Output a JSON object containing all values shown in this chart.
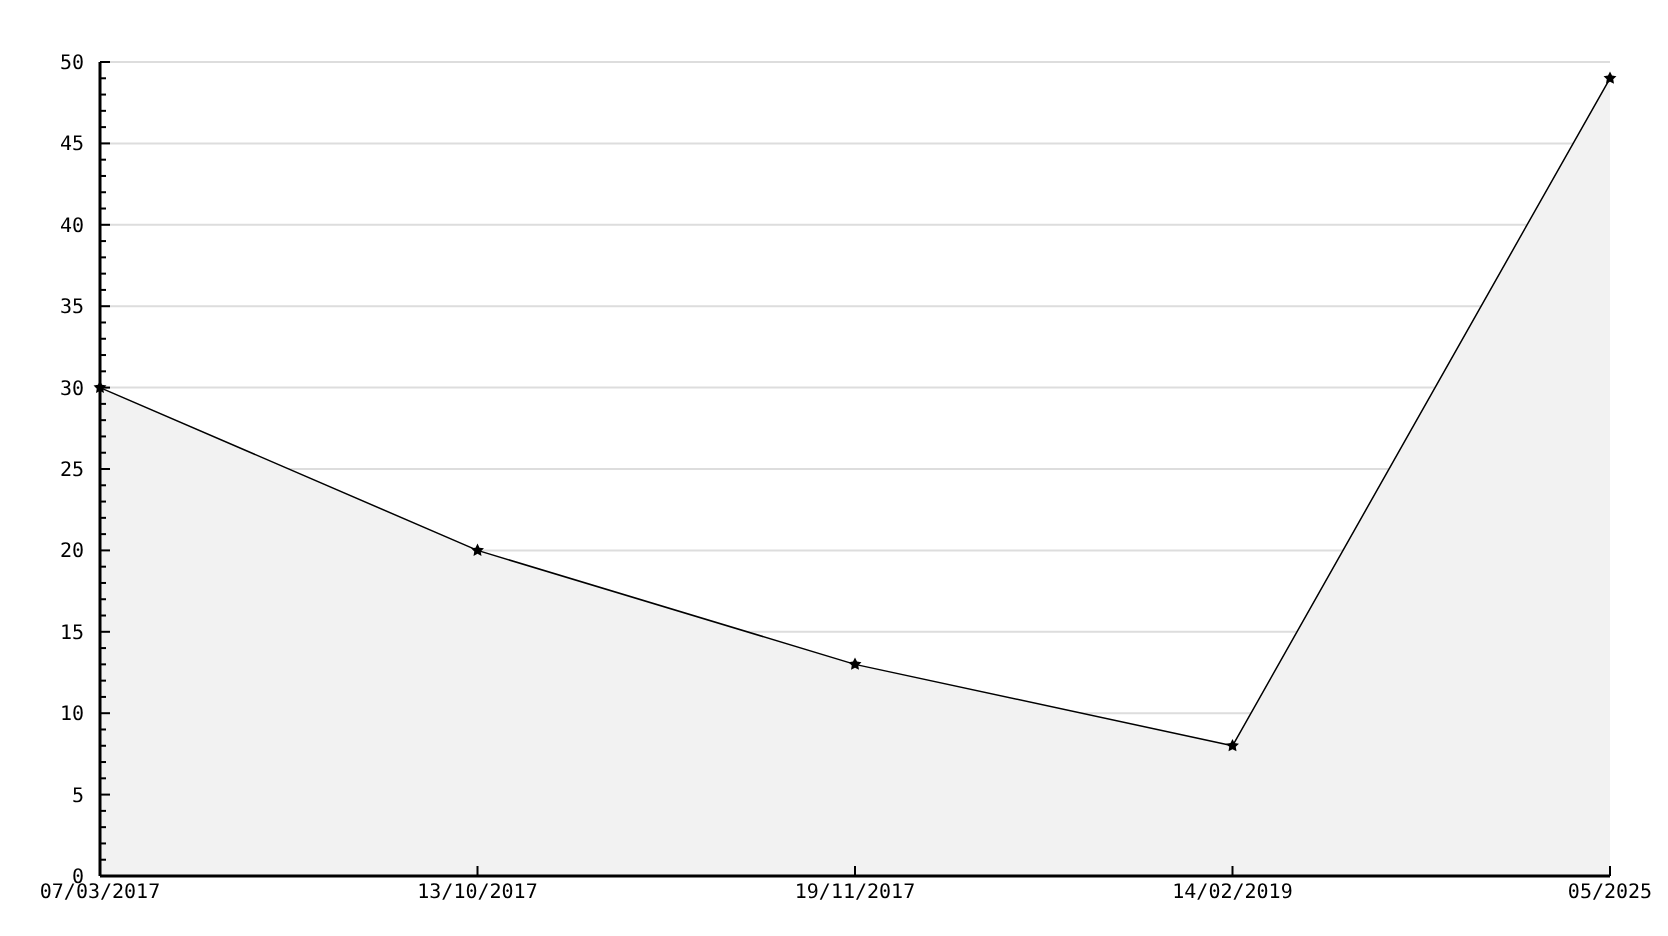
{
  "chart_data": {
    "type": "area",
    "categories": [
      "07/03/2017",
      "13/10/2017",
      "19/11/2017",
      "14/02/2019",
      "05/2025"
    ],
    "values": [
      30,
      20,
      13,
      8,
      49
    ],
    "color": "#f2f2f2",
    "ylim": [
      0,
      50
    ],
    "yticks": [
      0,
      {
        "value": 1,
        "label": null
      },
      {
        "value": 2,
        "label": null
      },
      {
        "value": 3,
        "label": null
      },
      {
        "value": 4,
        "label": null
      },
      5,
      {
        "value": 6,
        "label": null
      },
      {
        "value": 7,
        "label": null
      },
      {
        "value": 8,
        "label": null
      },
      {
        "value": 9,
        "label": null
      },
      10,
      {
        "value": 11,
        "label": null
      },
      {
        "value": 12,
        "label": null
      },
      {
        "value": 13,
        "label": null
      },
      {
        "value": 14,
        "label": null
      },
      15,
      {
        "value": 16,
        "label": null
      },
      {
        "value": 17,
        "label": null
      },
      {
        "value": 18,
        "label": null
      },
      {
        "value": 19,
        "label": null
      },
      20,
      {
        "value": 21,
        "label": null
      },
      {
        "value": 22,
        "label": null
      },
      {
        "value": 23,
        "label": null
      },
      {
        "value": 24,
        "label": null
      },
      25,
      {
        "value": 26,
        "label": null
      },
      {
        "value": 27,
        "label": null
      },
      {
        "value": 28,
        "label": null
      },
      {
        "value": 29,
        "label": null
      },
      30,
      {
        "value": 31,
        "label": null
      },
      {
        "value": 32,
        "label": null
      },
      {
        "value": 33,
        "label": null
      },
      {
        "value": 34,
        "label": null
      },
      35,
      {
        "value": 36,
        "label": null
      },
      {
        "value": 37,
        "label": null
      },
      {
        "value": 38,
        "label": null
      },
      {
        "value": 39,
        "label": null
      },
      40,
      {
        "value": 41,
        "label": null
      },
      {
        "value": 42,
        "label": null
      },
      {
        "value": 43,
        "label": null
      },
      {
        "value": 44,
        "label": null
      },
      45,
      {
        "value": 46,
        "label": null
      },
      {
        "value": 47,
        "label": null
      },
      {
        "value": 48,
        "label": null
      },
      {
        "value": 49,
        "label": null
      },
      50
    ],
    "grid": "y",
    "marker": "star",
    "line_style": "solid",
    "legend": false
  }
}
